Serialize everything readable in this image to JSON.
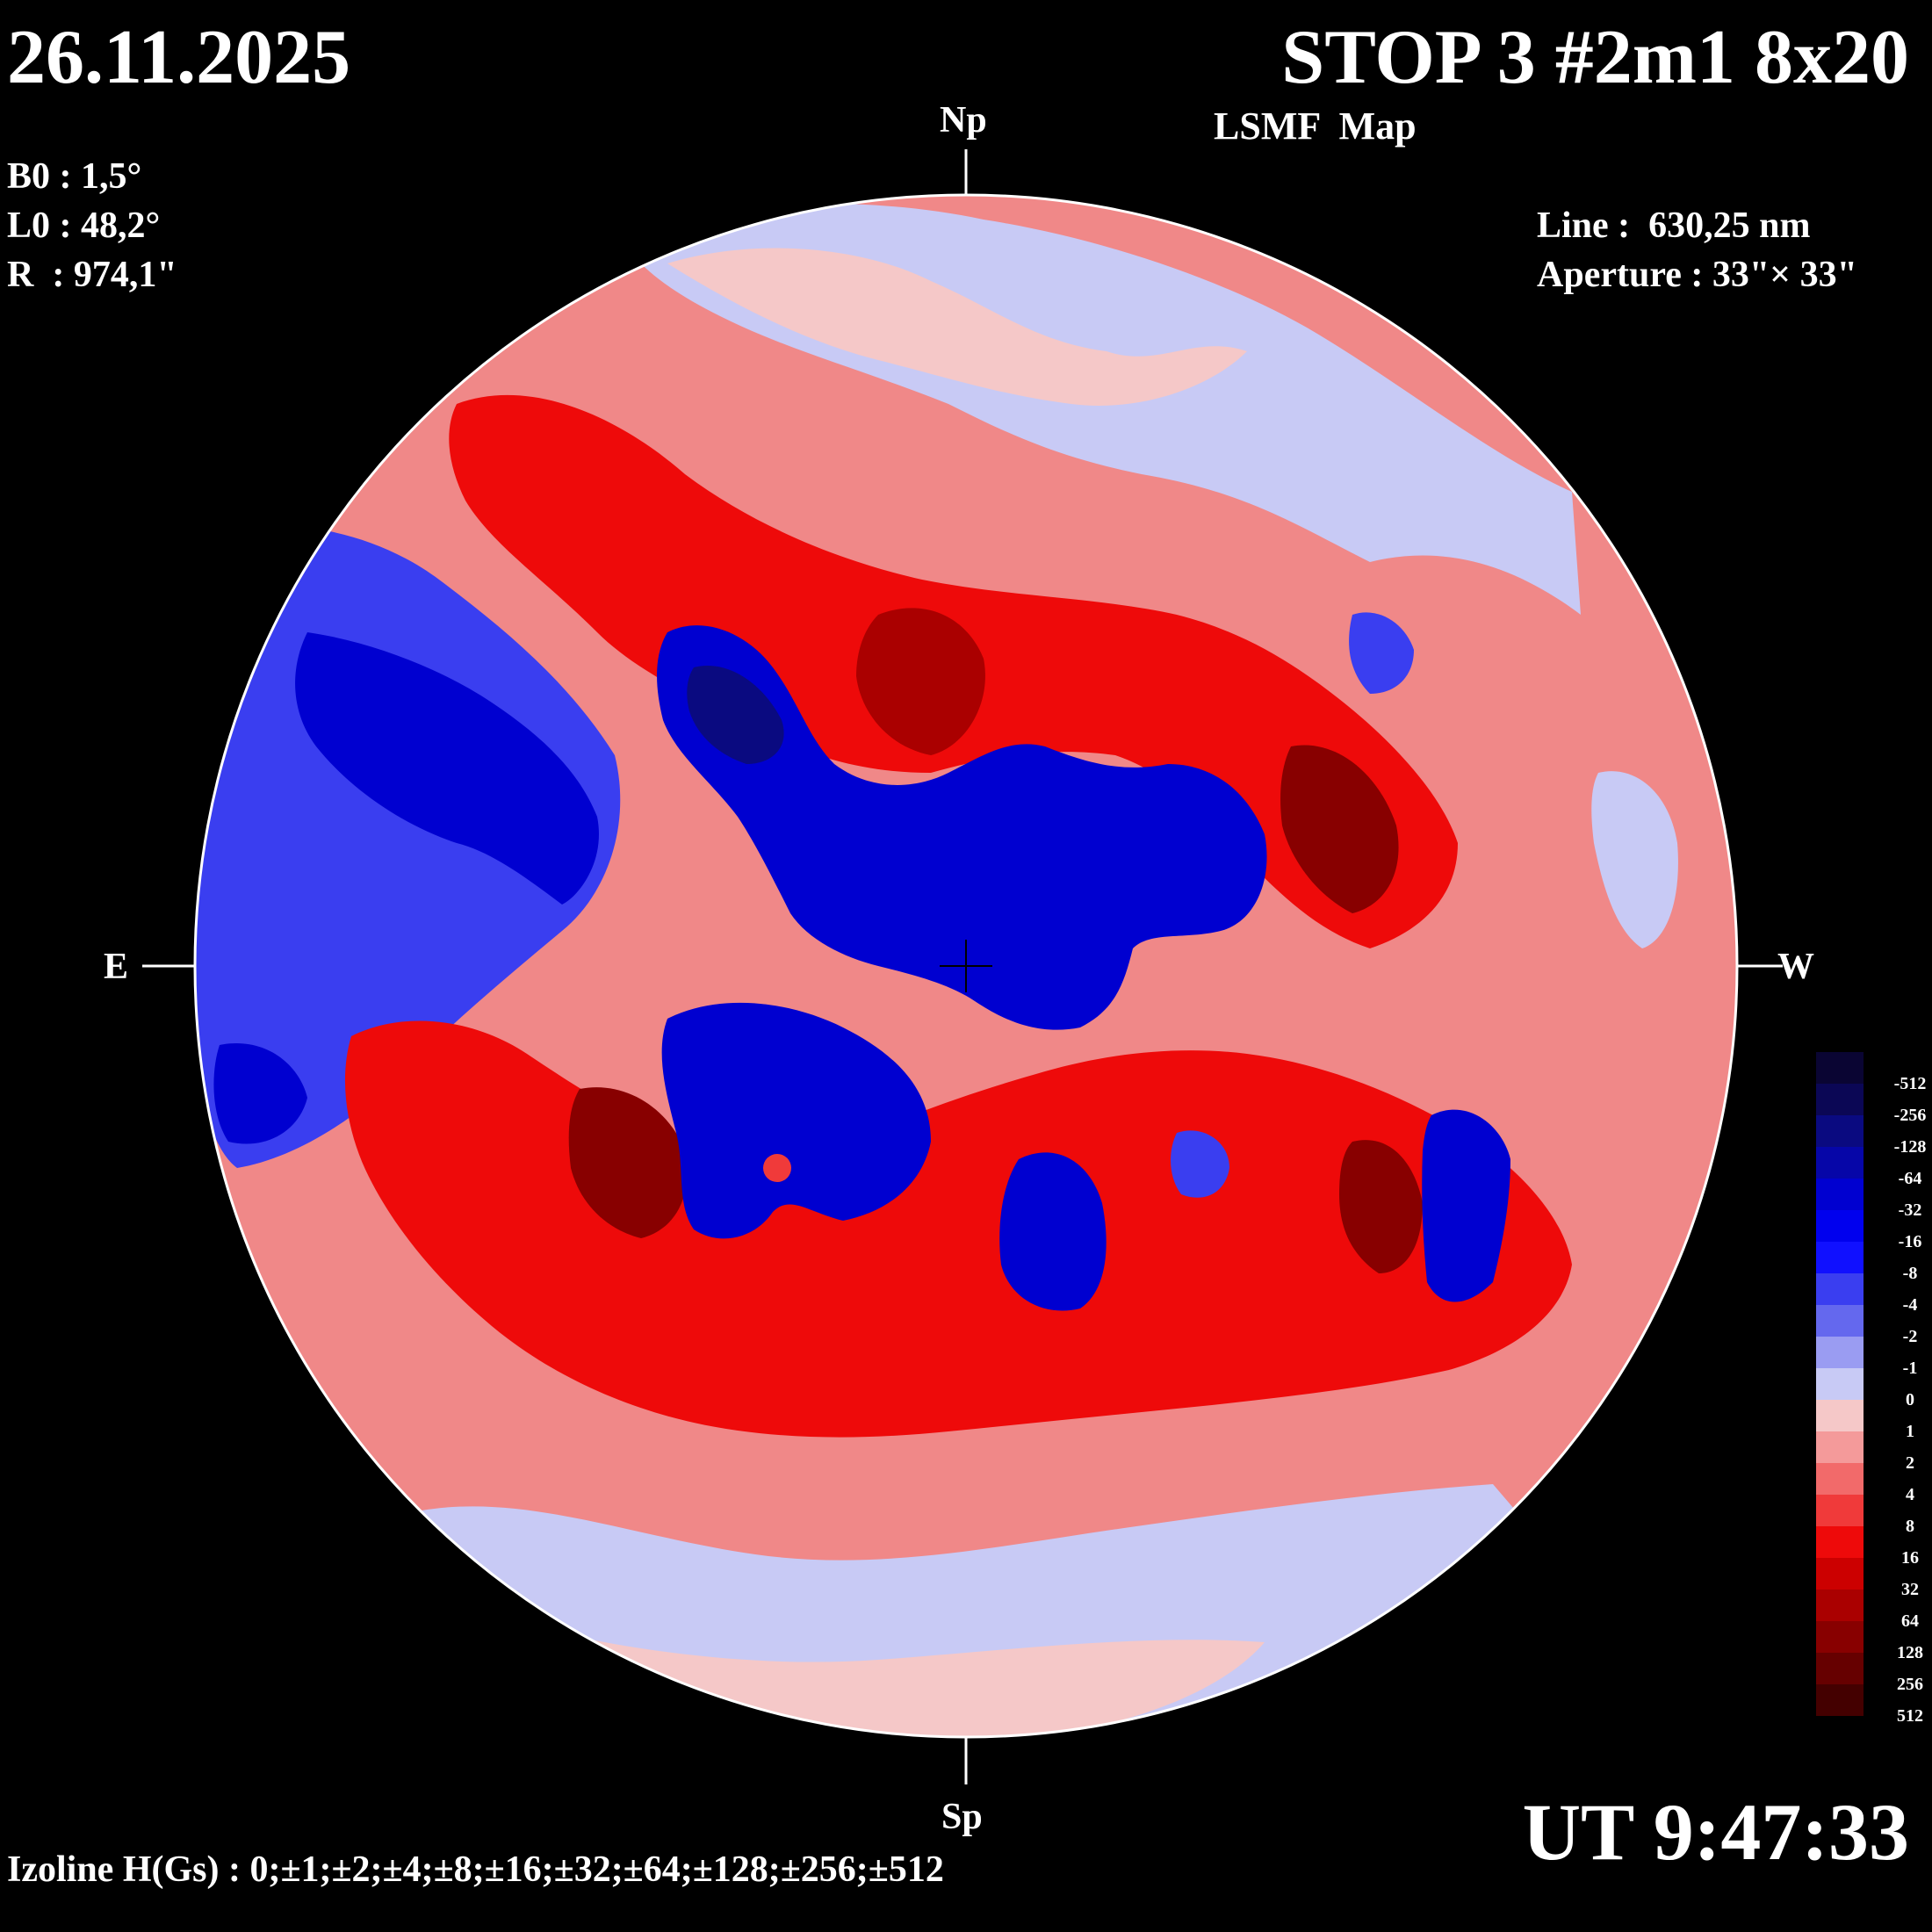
{
  "header": {
    "date": "26.11.2025",
    "title": "STOP 3 #2m1 8x20",
    "subtitle": "LSMF  Map",
    "ut": "UT 9:47:33"
  },
  "params_left": [
    "B0 : 1,5°",
    "L0 : 48,2°",
    "R  : 974,1\""
  ],
  "params_right": [
    "Line :  630,25 nm",
    "Aperture : 33\"× 33\""
  ],
  "directions": {
    "north": "Np",
    "south": "Sp",
    "east": "E",
    "west": "W"
  },
  "izoline": "Izoline H(Gs) : 0;±1;±2;±4;±8;±16;±32;±64;±128;±256;±512",
  "colorbar": {
    "labels": [
      "-512",
      "-256",
      "-128",
      "-64",
      "-32",
      "-16",
      "-8",
      "-4",
      "-2",
      "-1",
      "0",
      "1",
      "2",
      "4",
      "8",
      "16",
      "32",
      "64",
      "128",
      "256",
      "512"
    ],
    "colors": [
      "#0a0533",
      "#0b0755",
      "#0a0a80",
      "#0606a8",
      "#0000d0",
      "#0000ee",
      "#1010ff",
      "#3a3ef0",
      "#6468ee",
      "#9a9cf2",
      "#c8caf5",
      "#f5c8c8",
      "#f49a9a",
      "#f26a6a",
      "#f03a3a",
      "#ee0a0a",
      "#cc0000",
      "#aa0000",
      "#880000",
      "#660000",
      "#440000"
    ]
  },
  "map": {
    "background_color": "#f08888",
    "negative_regions": [
      {
        "color": "#c8caf5",
        "name": "north-cap"
      },
      {
        "color": "#c8caf5",
        "name": "south-band"
      },
      {
        "color": "#3a3ef0",
        "name": "east-region"
      },
      {
        "color": "#0000d0",
        "name": "central-blue"
      },
      {
        "color": "#0000d0",
        "name": "south-center-blue"
      },
      {
        "color": "#0000d0",
        "name": "south-blob-1"
      },
      {
        "color": "#0000d0",
        "name": "south-blob-2"
      }
    ],
    "positive_regions": [
      {
        "color": "#ee0a0a",
        "name": "north-red-band"
      },
      {
        "color": "#ee0a0a",
        "name": "south-red-band"
      },
      {
        "color": "#aa0000",
        "name": "core-1"
      },
      {
        "color": "#880000",
        "name": "core-2"
      },
      {
        "color": "#880000",
        "name": "core-3"
      },
      {
        "color": "#880000",
        "name": "core-4"
      }
    ]
  }
}
